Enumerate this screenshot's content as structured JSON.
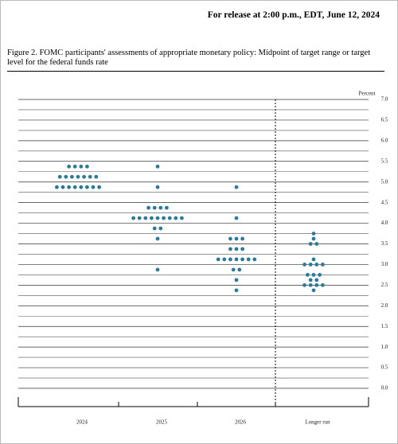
{
  "release_note": "For release at 2:00 p.m., EDT, June 12, 2024",
  "chart_data": {
    "type": "dot",
    "title": "Figure 2.  FOMC participants' assessments of appropriate monetary policy:  Midpoint of target range or target level for the federal funds rate",
    "y_label": "Percent",
    "color": "#2a7a9c",
    "categories": [
      "2024",
      "2025",
      "2026",
      "Longer run"
    ],
    "values": [
      [
        5.375,
        5.375,
        5.375,
        5.375,
        5.125,
        5.125,
        5.125,
        5.125,
        5.125,
        5.125,
        5.125,
        4.875,
        4.875,
        4.875,
        4.875,
        4.875,
        4.875,
        4.875,
        4.875
      ],
      [
        5.375,
        4.875,
        4.375,
        4.375,
        4.375,
        4.375,
        4.125,
        4.125,
        4.125,
        4.125,
        4.125,
        4.125,
        4.125,
        4.125,
        4.125,
        3.875,
        3.875,
        3.625,
        2.875
      ],
      [
        4.875,
        4.125,
        3.625,
        3.625,
        3.625,
        3.375,
        3.375,
        3.375,
        3.125,
        3.125,
        3.125,
        3.125,
        3.125,
        3.125,
        3.125,
        2.875,
        2.875,
        2.625,
        2.375
      ],
      [
        3.75,
        3.625,
        3.5,
        3.5,
        3.125,
        3.0,
        3.0,
        3.0,
        3.0,
        2.75,
        2.75,
        2.75,
        2.625,
        2.625,
        2.5,
        2.5,
        2.5,
        2.5,
        2.375
      ]
    ],
    "ylim": [
      0,
      7
    ],
    "yticks": [
      {
        "value": 0,
        "label": "0.0"
      },
      0.5,
      {
        "value": 1,
        "label": "1.0"
      },
      1.5,
      {
        "value": 2,
        "label": "2.0"
      },
      2.5,
      {
        "value": 3,
        "label": "3.0"
      },
      3.5,
      {
        "value": 4,
        "label": "4.0"
      },
      4.5,
      {
        "value": 5,
        "label": "5.0"
      },
      5.5,
      {
        "value": 6,
        "label": "6.0"
      },
      6.5,
      {
        "value": 7,
        "label": "7.0"
      }
    ],
    "yticks_minor": [
      0.25,
      0.75,
      1.25,
      1.75,
      2.25,
      2.75,
      3.25,
      3.75,
      4.25,
      4.75,
      5.25,
      5.75,
      6.25,
      6.75
    ],
    "grid": true
  }
}
